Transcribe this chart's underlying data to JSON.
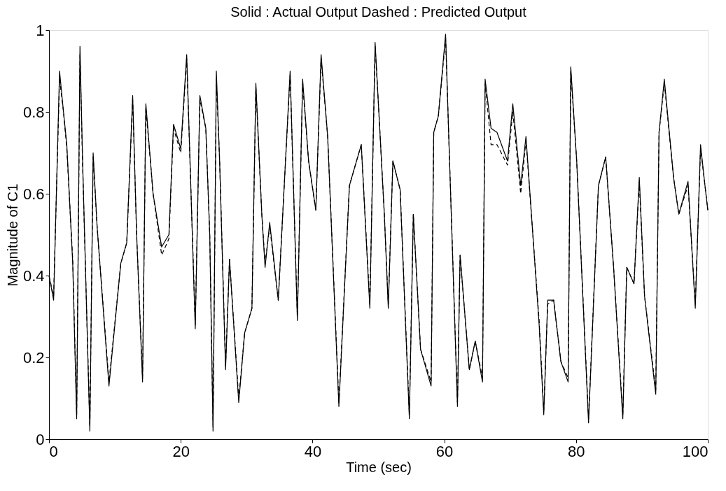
{
  "chart_data": {
    "type": "line",
    "title": "Solid : Actual Output Dashed : Predicted Output",
    "xlabel": "Time (sec)",
    "ylabel": "Magnitude of C1",
    "x": [
      0,
      0.7,
      1.6,
      2.2,
      2.7,
      3.6,
      4.2,
      4.7,
      5.1,
      6.2,
      6.7,
      7.3,
      9.1,
      10.9,
      11.8,
      12.7,
      13.3,
      14.2,
      14.7,
      15.8,
      17.1,
      18.2,
      18.9,
      20.0,
      20.9,
      22.2,
      22.9,
      23.8,
      24.4,
      24.9,
      25.4,
      25.9,
      26.8,
      27.4,
      28.8,
      29.7,
      30.8,
      31.4,
      32.3,
      32.8,
      33.5,
      34.8,
      35.9,
      36.6,
      37.7,
      38.5,
      39.4,
      40.5,
      41.3,
      42.3,
      44.0,
      45.6,
      47.4,
      48.7,
      49.5,
      50.0,
      50.9,
      51.5,
      52.2,
      53.3,
      54.7,
      55.3,
      56.4,
      58.0,
      58.4,
      59.1,
      60.2,
      60.7,
      62.0,
      62.4,
      63.8,
      64.7,
      65.8,
      66.2,
      67.1,
      68.0,
      69.6,
      70.4,
      71.6,
      72.4,
      74.4,
      75.1,
      75.7,
      76.6,
      77.7,
      78.8,
      79.2,
      80.1,
      81.9,
      83.4,
      84.5,
      85.7,
      87.1,
      87.7,
      88.8,
      89.6,
      90.4,
      92.1,
      92.6,
      93.4,
      94.8,
      95.6,
      97.0,
      98.1,
      98.9,
      99.5,
      100
    ],
    "series": [
      {
        "color": "#000000",
        "line_style": "solid",
        "values": [
          0.4,
          0.34,
          0.9,
          0.8,
          0.72,
          0.43,
          0.05,
          0.96,
          0.68,
          0.02,
          0.7,
          0.52,
          0.13,
          0.43,
          0.48,
          0.84,
          0.5,
          0.14,
          0.82,
          0.6,
          0.47,
          0.5,
          0.77,
          0.71,
          0.94,
          0.27,
          0.84,
          0.76,
          0.5,
          0.02,
          0.9,
          0.68,
          0.17,
          0.44,
          0.09,
          0.26,
          0.32,
          0.87,
          0.55,
          0.42,
          0.53,
          0.34,
          0.68,
          0.9,
          0.29,
          0.88,
          0.68,
          0.56,
          0.94,
          0.74,
          0.08,
          0.62,
          0.72,
          0.32,
          0.97,
          0.82,
          0.55,
          0.32,
          0.68,
          0.61,
          0.05,
          0.55,
          0.22,
          0.13,
          0.75,
          0.79,
          0.99,
          0.73,
          0.08,
          0.45,
          0.17,
          0.24,
          0.14,
          0.88,
          0.76,
          0.75,
          0.68,
          0.82,
          0.62,
          0.74,
          0.28,
          0.06,
          0.34,
          0.34,
          0.19,
          0.14,
          0.91,
          0.68,
          0.04,
          0.62,
          0.69,
          0.42,
          0.05,
          0.42,
          0.38,
          0.64,
          0.35,
          0.11,
          0.75,
          0.88,
          0.64,
          0.55,
          0.63,
          0.32,
          0.72,
          0.63,
          0.56
        ]
      },
      {
        "color": "#000000",
        "line_style": "dashed",
        "values": [
          0.4,
          0.35,
          0.88,
          0.8,
          0.71,
          0.44,
          0.06,
          0.94,
          0.67,
          0.03,
          0.69,
          0.52,
          0.14,
          0.43,
          0.48,
          0.83,
          0.5,
          0.15,
          0.81,
          0.6,
          0.45,
          0.49,
          0.76,
          0.7,
          0.93,
          0.28,
          0.83,
          0.76,
          0.5,
          0.03,
          0.88,
          0.68,
          0.18,
          0.44,
          0.1,
          0.26,
          0.32,
          0.86,
          0.55,
          0.43,
          0.52,
          0.34,
          0.68,
          0.89,
          0.3,
          0.87,
          0.68,
          0.56,
          0.93,
          0.74,
          0.09,
          0.62,
          0.72,
          0.33,
          0.96,
          0.82,
          0.55,
          0.33,
          0.68,
          0.61,
          0.06,
          0.55,
          0.22,
          0.14,
          0.75,
          0.79,
          0.98,
          0.73,
          0.09,
          0.45,
          0.17,
          0.24,
          0.15,
          0.87,
          0.72,
          0.72,
          0.67,
          0.8,
          0.6,
          0.73,
          0.29,
          0.07,
          0.33,
          0.34,
          0.19,
          0.15,
          0.9,
          0.68,
          0.05,
          0.62,
          0.69,
          0.42,
          0.06,
          0.42,
          0.38,
          0.63,
          0.35,
          0.12,
          0.75,
          0.87,
          0.64,
          0.55,
          0.62,
          0.33,
          0.71,
          0.63,
          0.56
        ]
      }
    ],
    "xlim": [
      0,
      100
    ],
    "xticks": [
      0,
      20,
      40,
      60,
      80,
      100
    ],
    "ylim": [
      0,
      1
    ],
    "yticks": [
      0,
      0.2,
      0.4,
      0.6,
      0.8,
      1
    ],
    "grid": false,
    "marker": "none"
  }
}
